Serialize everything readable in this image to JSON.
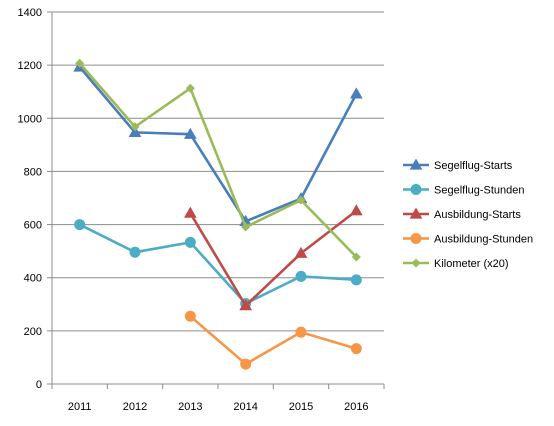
{
  "chart_data": {
    "type": "line",
    "categories": [
      "2011",
      "2012",
      "2013",
      "2014",
      "2015",
      "2016"
    ],
    "ylim": [
      0,
      1400
    ],
    "yticks": [
      0,
      200,
      400,
      600,
      800,
      1000,
      1200,
      1400
    ],
    "grid": true,
    "legend_position": "right",
    "series": [
      {
        "name": "Segelflug-Starts",
        "color": "#4a7ebb",
        "marker": "triangle",
        "values": [
          1193,
          947,
          940,
          612,
          698,
          1092
        ]
      },
      {
        "name": "Segelflug-Stunden",
        "color": "#4bacc6",
        "marker": "circle",
        "values": [
          600,
          496,
          533,
          303,
          405,
          392
        ]
      },
      {
        "name": "Ausbildung-Starts",
        "color": "#be4b48",
        "marker": "triangle",
        "values": [
          null,
          null,
          643,
          295,
          492,
          652
        ]
      },
      {
        "name": "Ausbildung-Stunden",
        "color": "#f79646",
        "marker": "circle",
        "values": [
          null,
          null,
          255,
          75,
          195,
          133
        ]
      },
      {
        "name": "Kilometer (x20)",
        "color": "#9bbb59",
        "marker": "diamond",
        "values": [
          1207,
          968,
          1113,
          591,
          692,
          478
        ]
      }
    ]
  }
}
